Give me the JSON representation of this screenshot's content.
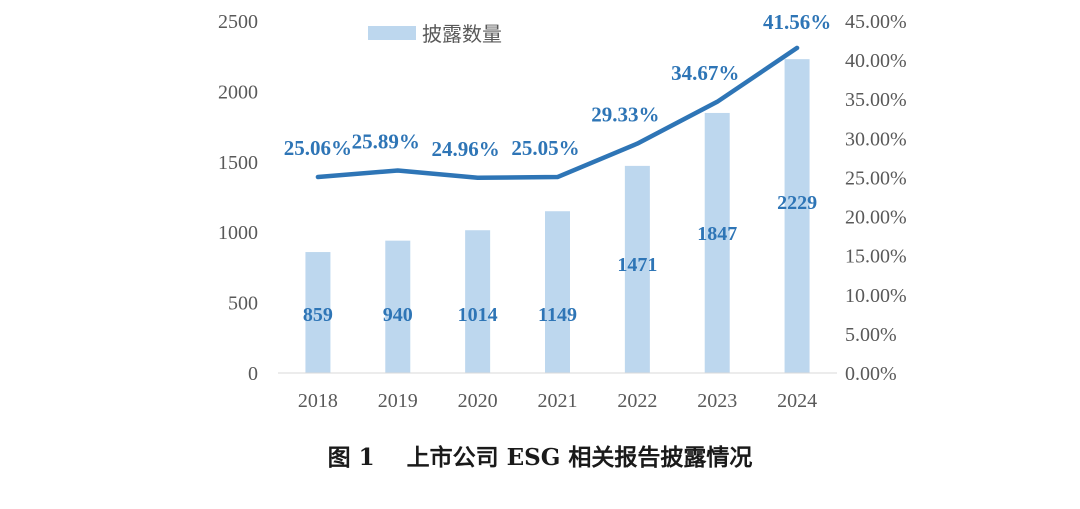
{
  "chart_data": {
    "type": "bar+line",
    "categories": [
      "2018",
      "2019",
      "2020",
      "2021",
      "2022",
      "2023",
      "2024"
    ],
    "series": [
      {
        "name": "披露数量",
        "type": "bar",
        "axis": "left",
        "values": [
          859,
          940,
          1014,
          1149,
          1471,
          1847,
          2229
        ],
        "labels": [
          "859",
          "940",
          "1014",
          "1149",
          "1471",
          "1847",
          "2229"
        ],
        "color": "#bdd7ee"
      },
      {
        "type": "line",
        "axis": "right",
        "values": [
          25.06,
          25.89,
          24.96,
          25.05,
          29.33,
          34.67,
          41.56
        ],
        "labels": [
          "25.06%",
          "25.89%",
          "24.96%",
          "25.05%",
          "29.33%",
          "34.67%",
          "41.56%"
        ],
        "color": "#2e75b6"
      }
    ],
    "y_left": {
      "ylim": [
        0,
        2500
      ],
      "ticks": [
        "0",
        "500",
        "1000",
        "1500",
        "2000",
        "2500"
      ]
    },
    "y_right": {
      "ylim": [
        0,
        45
      ],
      "ticks": [
        "0.00%",
        "5.00%",
        "10.00%",
        "15.00%",
        "20.00%",
        "25.00%",
        "30.00%",
        "35.00%",
        "40.00%",
        "45.00%"
      ]
    },
    "grid": false,
    "legend": "top-left",
    "label_color": "#2e75b6",
    "tick_color": "#595959"
  },
  "caption": {
    "fig_no": "图 1",
    "title": "上市公司 ESG 相关报告披露情况"
  }
}
